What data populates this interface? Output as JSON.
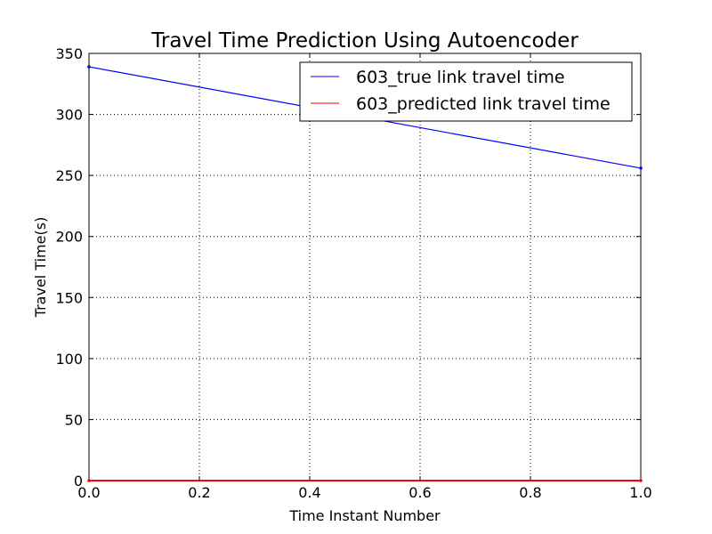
{
  "chart_data": {
    "type": "line",
    "title": "Travel Time Prediction Using Autoencoder",
    "xlabel": "Time Instant Number",
    "ylabel": "Travel Time(s)",
    "xlim": [
      0.0,
      1.0
    ],
    "ylim": [
      0,
      350
    ],
    "x": [
      0.0,
      1.0
    ],
    "xticks": [
      "0.0",
      "0.2",
      "0.4",
      "0.6",
      "0.8",
      "1.0"
    ],
    "yticks": [
      "0",
      "50",
      "100",
      "150",
      "200",
      "250",
      "300",
      "350"
    ],
    "grid": true,
    "legend_position": "top-right",
    "series": [
      {
        "name": "603_true link travel time",
        "values": [
          339,
          256
        ],
        "color": "#0000ff"
      },
      {
        "name": "603_predicted link travel time",
        "values": [
          0,
          0
        ],
        "color": "#ff0000"
      }
    ]
  }
}
